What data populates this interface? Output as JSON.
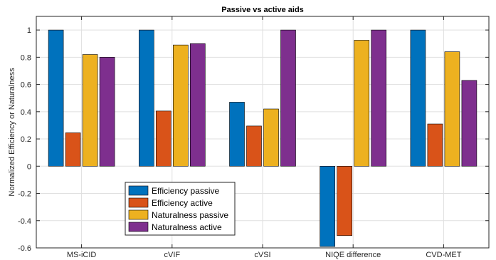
{
  "chart_data": {
    "type": "bar",
    "title": "Passive vs active aids",
    "xlabel": "",
    "ylabel": "Normalized Efficiency or Naturalness",
    "categories": [
      "MS-iCID",
      "cVIF",
      "cVSI",
      "NIQE difference",
      "CVD-MET"
    ],
    "ylim": [
      -0.6,
      1.1
    ],
    "yticks": [
      -0.6,
      -0.4,
      -0.2,
      0,
      0.2,
      0.4,
      0.6,
      0.8,
      1
    ],
    "ytick_labels": [
      "-0.6",
      "-0.4",
      "-0.2",
      "0",
      "0.2",
      "0.4",
      "0.6",
      "0.8",
      "1"
    ],
    "grid": true,
    "legend_position": "lower-left",
    "series": [
      {
        "name": "Efficiency passive",
        "color": "#0072BD",
        "values": [
          1.0,
          1.0,
          0.47,
          -0.59,
          1.0
        ]
      },
      {
        "name": "Efficiency active",
        "color": "#D95319",
        "values": [
          0.245,
          0.405,
          0.295,
          -0.51,
          0.31
        ]
      },
      {
        "name": "Naturalness passive",
        "color": "#EDB120",
        "values": [
          0.82,
          0.89,
          0.42,
          0.925,
          0.84
        ]
      },
      {
        "name": "Naturalness active",
        "color": "#7E2F8E",
        "values": [
          0.8,
          0.9,
          1.0,
          1.0,
          0.63
        ]
      }
    ]
  }
}
